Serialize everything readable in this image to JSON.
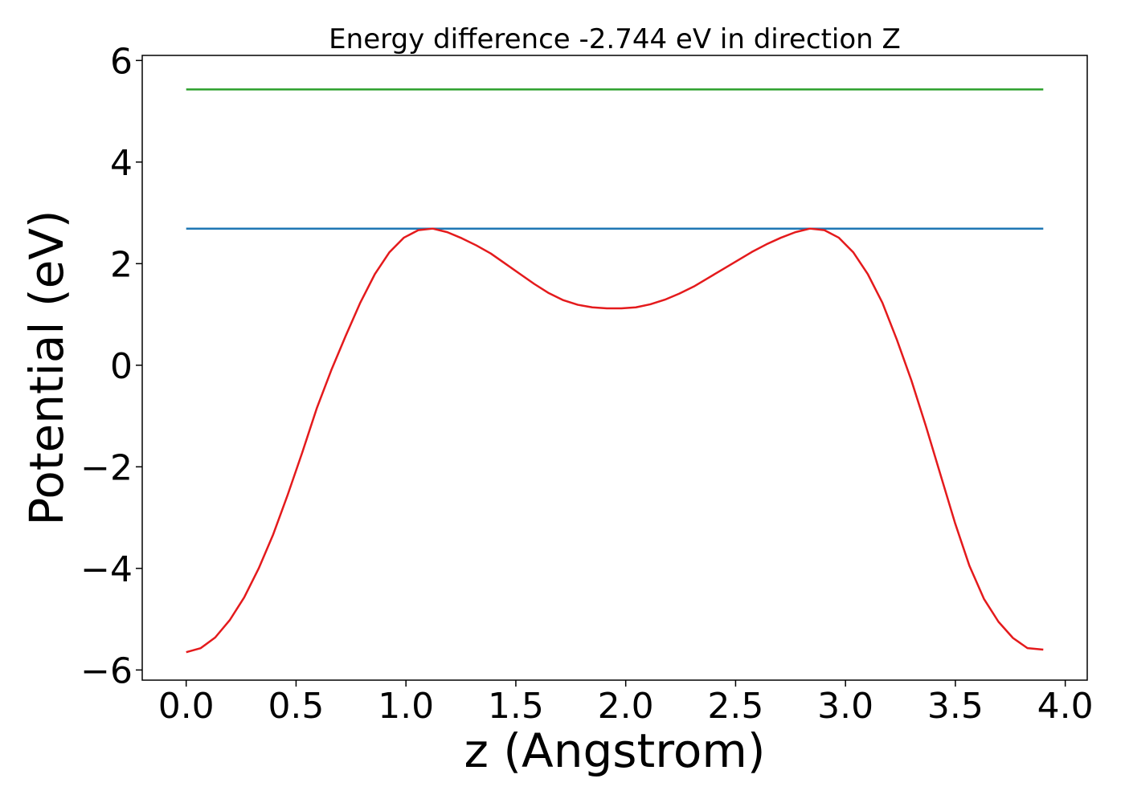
{
  "chart_data": {
    "type": "line",
    "title": "Energy difference -2.744 eV in direction Z",
    "xlabel": "z (Angstrom)",
    "ylabel": "Potential (eV)",
    "xlim": [
      -0.2,
      4.1
    ],
    "ylim": [
      -6.2,
      6.1
    ],
    "xticks": [
      0.0,
      0.5,
      1.0,
      1.5,
      2.0,
      2.5,
      3.0,
      3.5,
      4.0
    ],
    "xtick_labels": [
      "0.0",
      "0.5",
      "1.0",
      "1.5",
      "2.0",
      "2.5",
      "3.0",
      "3.5",
      "4.0"
    ],
    "yticks": [
      -6,
      -4,
      -2,
      0,
      2,
      4,
      6
    ],
    "ytick_labels": [
      "−6",
      "−4",
      "−2",
      "0",
      "2",
      "4",
      "6"
    ],
    "grid": false,
    "series": [
      {
        "color": "#2ca02c",
        "x": [
          0.0,
          3.9
        ],
        "y": [
          5.43,
          5.43
        ]
      },
      {
        "color": "#1f77b4",
        "x": [
          0.0,
          3.9
        ],
        "y": [
          2.69,
          2.69
        ]
      },
      {
        "color": "#e41a1c",
        "x": [
          0.0,
          0.066,
          0.132,
          0.198,
          0.264,
          0.33,
          0.396,
          0.462,
          0.528,
          0.594,
          0.66,
          0.726,
          0.792,
          0.858,
          0.924,
          0.99,
          1.056,
          1.122,
          1.188,
          1.254,
          1.32,
          1.386,
          1.452,
          1.518,
          1.584,
          1.65,
          1.716,
          1.782,
          1.848,
          1.914,
          1.98,
          2.046,
          2.112,
          2.178,
          2.244,
          2.31,
          2.376,
          2.442,
          2.508,
          2.574,
          2.64,
          2.706,
          2.772,
          2.838,
          2.904,
          2.97,
          3.036,
          3.102,
          3.168,
          3.234,
          3.3,
          3.366,
          3.432,
          3.498,
          3.564,
          3.63,
          3.696,
          3.762,
          3.828,
          3.9
        ],
        "y": [
          -5.65,
          -5.57,
          -5.36,
          -5.02,
          -4.57,
          -4.0,
          -3.33,
          -2.55,
          -1.72,
          -0.85,
          -0.1,
          0.58,
          1.23,
          1.79,
          2.22,
          2.51,
          2.66,
          2.69,
          2.62,
          2.5,
          2.36,
          2.2,
          2.0,
          1.8,
          1.6,
          1.42,
          1.28,
          1.19,
          1.14,
          1.12,
          1.12,
          1.14,
          1.2,
          1.29,
          1.41,
          1.55,
          1.72,
          1.89,
          2.06,
          2.23,
          2.38,
          2.51,
          2.62,
          2.69,
          2.66,
          2.51,
          2.22,
          1.79,
          1.23,
          0.5,
          -0.3,
          -1.2,
          -2.15,
          -3.1,
          -3.95,
          -4.6,
          -5.05,
          -5.37,
          -5.57,
          -5.6
        ]
      }
    ]
  }
}
